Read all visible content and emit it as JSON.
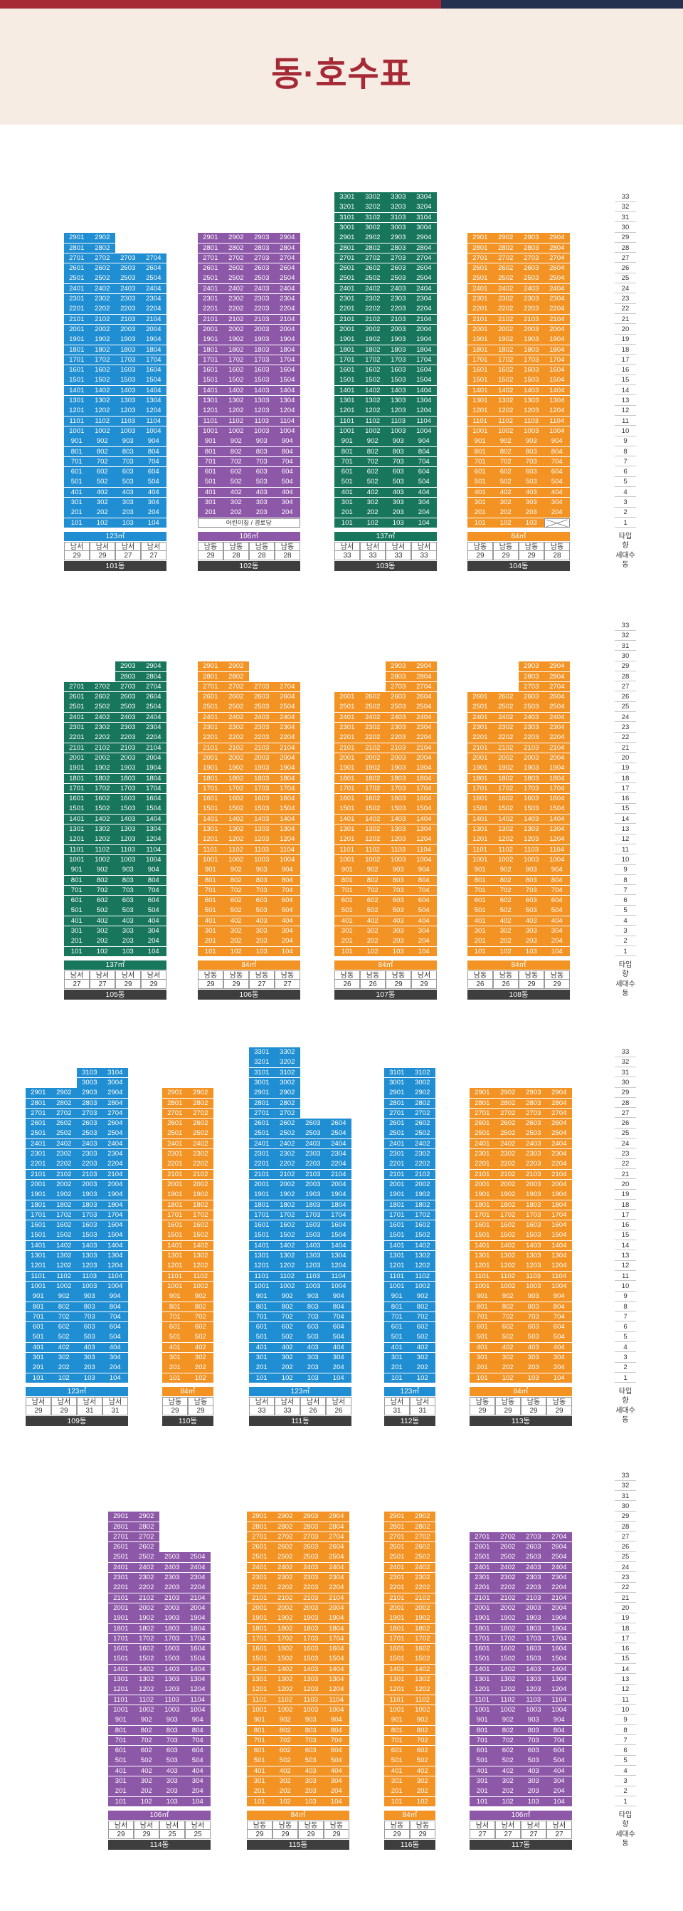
{
  "page": {
    "title": "동·호수표"
  },
  "colors": {
    "page_bg": "#f6ece3",
    "title": "#a52a36",
    "top_bar_left": "#a52a36",
    "top_bar_right": "#25324f",
    "type_123": "#1f8ed2",
    "type_106": "#8e58a8",
    "type_137": "#17765c",
    "type_84": "#f29324",
    "name_bar": "#3e3e3e"
  },
  "legend": {
    "floors": [
      "33",
      "32",
      "31",
      "30",
      "29",
      "28",
      "27",
      "26",
      "25",
      "24",
      "23",
      "22",
      "21",
      "20",
      "19",
      "18",
      "17",
      "16",
      "15",
      "14",
      "13",
      "12",
      "11",
      "10",
      "9",
      "8",
      "7",
      "6",
      "5",
      "4",
      "3",
      "2",
      "1"
    ],
    "labels": [
      "타입",
      "향",
      "세대수",
      "동"
    ]
  },
  "rows": [
    {
      "buildings": [
        {
          "name": "101동",
          "type_label": "123㎡",
          "color": "type_123",
          "cols": [
            {
              "line": 1,
              "dir": "남서",
              "count": "29",
              "max": 29
            },
            {
              "line": 2,
              "dir": "남서",
              "count": "29",
              "max": 29
            },
            {
              "line": 3,
              "dir": "남서",
              "count": "27",
              "max": 27
            },
            {
              "line": 4,
              "dir": "남서",
              "count": "27",
              "max": 27
            }
          ]
        },
        {
          "name": "102동",
          "type_label": "106㎡",
          "color": "type_106",
          "daycare": "어린이집 / 경로당",
          "daycare_floor": 1,
          "cols": [
            {
              "line": 1,
              "dir": "남동",
              "count": "29",
              "max": 29
            },
            {
              "line": 2,
              "dir": "남동",
              "count": "28",
              "max": 29
            },
            {
              "line": 3,
              "dir": "남동",
              "count": "28",
              "max": 29
            },
            {
              "line": 4,
              "dir": "남동",
              "count": "28",
              "max": 29
            }
          ]
        },
        {
          "name": "103동",
          "type_label": "137㎡",
          "color": "type_137",
          "cols": [
            {
              "line": 1,
              "dir": "남서",
              "count": "33",
              "max": 33
            },
            {
              "line": 2,
              "dir": "남서",
              "count": "33",
              "max": 33
            },
            {
              "line": 3,
              "dir": "남서",
              "count": "33",
              "max": 33
            },
            {
              "line": 4,
              "dir": "남서",
              "count": "33",
              "max": 33
            }
          ]
        },
        {
          "name": "104동",
          "type_label": "84㎡",
          "color": "type_84",
          "empty_cell": {
            "line": 4,
            "floor": 1
          },
          "cols": [
            {
              "line": 1,
              "dir": "남동",
              "count": "29",
              "max": 29
            },
            {
              "line": 2,
              "dir": "남동",
              "count": "29",
              "max": 29
            },
            {
              "line": 3,
              "dir": "남동",
              "count": "29",
              "max": 29
            },
            {
              "line": 4,
              "dir": "남동",
              "count": "28",
              "max": 29
            }
          ]
        }
      ]
    },
    {
      "buildings": [
        {
          "name": "105동",
          "type_label": "137㎡",
          "color": "type_137",
          "cols": [
            {
              "line": 1,
              "dir": "남서",
              "count": "27",
              "max": 27
            },
            {
              "line": 2,
              "dir": "남서",
              "count": "27",
              "max": 27
            },
            {
              "line": 3,
              "dir": "남서",
              "count": "29",
              "max": 29
            },
            {
              "line": 4,
              "dir": "남서",
              "count": "29",
              "max": 29
            }
          ]
        },
        {
          "name": "106동",
          "type_label": "84㎡",
          "color": "type_84",
          "cols": [
            {
              "line": 1,
              "dir": "남동",
              "count": "29",
              "max": 29
            },
            {
              "line": 2,
              "dir": "남동",
              "count": "29",
              "max": 29
            },
            {
              "line": 3,
              "dir": "남동",
              "count": "27",
              "max": 27
            },
            {
              "line": 4,
              "dir": "남동",
              "count": "27",
              "max": 27
            }
          ]
        },
        {
          "name": "107동",
          "type_label": "84㎡",
          "color": "type_84",
          "cols": [
            {
              "line": 1,
              "dir": "남동",
              "count": "26",
              "max": 26
            },
            {
              "line": 2,
              "dir": "남동",
              "count": "26",
              "max": 26
            },
            {
              "line": 3,
              "dir": "남동",
              "count": "29",
              "max": 29
            },
            {
              "line": 4,
              "dir": "남서",
              "count": "29",
              "max": 29
            }
          ]
        },
        {
          "name": "108동",
          "type_label": "84㎡",
          "color": "type_84",
          "cols": [
            {
              "line": 1,
              "dir": "남동",
              "count": "26",
              "max": 26
            },
            {
              "line": 2,
              "dir": "남동",
              "count": "26",
              "max": 26
            },
            {
              "line": 3,
              "dir": "남동",
              "count": "29",
              "max": 29
            },
            {
              "line": 4,
              "dir": "남동",
              "count": "29",
              "max": 29
            }
          ]
        }
      ]
    },
    {
      "buildings": [
        {
          "name": "109동",
          "type_label": "123㎡",
          "color": "type_123",
          "cols": [
            {
              "line": 1,
              "dir": "남서",
              "count": "29",
              "max": 29
            },
            {
              "line": 2,
              "dir": "남서",
              "count": "29",
              "max": 29
            },
            {
              "line": 3,
              "dir": "남서",
              "count": "31",
              "max": 31
            },
            {
              "line": 4,
              "dir": "남서",
              "count": "31",
              "max": 31
            }
          ]
        },
        {
          "name": "110동",
          "type_label": "84㎡",
          "color": "type_84",
          "cols": [
            {
              "line": 1,
              "dir": "남동",
              "count": "29",
              "max": 29
            },
            {
              "line": 2,
              "dir": "남동",
              "count": "29",
              "max": 29
            }
          ]
        },
        {
          "name": "111동",
          "type_label": "123㎡",
          "color": "type_123",
          "cols": [
            {
              "line": 1,
              "dir": "남서",
              "count": "33",
              "max": 33
            },
            {
              "line": 2,
              "dir": "남서",
              "count": "33",
              "max": 33
            },
            {
              "line": 3,
              "dir": "남서",
              "count": "26",
              "max": 26
            },
            {
              "line": 4,
              "dir": "남서",
              "count": "26",
              "max": 26
            }
          ]
        },
        {
          "name": "112동",
          "type_label": "123㎡",
          "color": "type_123",
          "cols": [
            {
              "line": 1,
              "dir": "남서",
              "count": "31",
              "max": 31
            },
            {
              "line": 2,
              "dir": "남서",
              "count": "31",
              "max": 31
            }
          ]
        },
        {
          "name": "113동",
          "type_label": "84㎡",
          "color": "type_84",
          "cols": [
            {
              "line": 1,
              "dir": "남동",
              "count": "29",
              "max": 29
            },
            {
              "line": 2,
              "dir": "남동",
              "count": "29",
              "max": 29
            },
            {
              "line": 3,
              "dir": "남동",
              "count": "29",
              "max": 29
            },
            {
              "line": 4,
              "dir": "남동",
              "count": "29",
              "max": 29
            }
          ]
        }
      ]
    },
    {
      "buildings": [
        {
          "name": "114동",
          "type_label": "106㎡",
          "color": "type_106",
          "cols": [
            {
              "line": 1,
              "dir": "남서",
              "count": "29",
              "max": 29
            },
            {
              "line": 2,
              "dir": "남서",
              "count": "29",
              "max": 29
            },
            {
              "line": 3,
              "dir": "남서",
              "count": "25",
              "max": 25
            },
            {
              "line": 4,
              "dir": "남서",
              "count": "25",
              "max": 25
            }
          ]
        },
        {
          "name": "115동",
          "type_label": "84㎡",
          "color": "type_84",
          "cols": [
            {
              "line": 1,
              "dir": "남동",
              "count": "29",
              "max": 29
            },
            {
              "line": 2,
              "dir": "남동",
              "count": "29",
              "max": 29
            },
            {
              "line": 3,
              "dir": "남동",
              "count": "29",
              "max": 29
            },
            {
              "line": 4,
              "dir": "남동",
              "count": "29",
              "max": 29
            }
          ]
        },
        {
          "name": "116동",
          "type_label": "84㎡",
          "color": "type_84",
          "cols": [
            {
              "line": 1,
              "dir": "남동",
              "count": "29",
              "max": 29
            },
            {
              "line": 2,
              "dir": "남동",
              "count": "29",
              "max": 29
            }
          ]
        },
        {
          "name": "117동",
          "type_label": "106㎡",
          "color": "type_106",
          "cols": [
            {
              "line": 1,
              "dir": "남서",
              "count": "27",
              "max": 27
            },
            {
              "line": 2,
              "dir": "남서",
              "count": "27",
              "max": 27
            },
            {
              "line": 3,
              "dir": "남서",
              "count": "27",
              "max": 27
            },
            {
              "line": 4,
              "dir": "남서",
              "count": "27",
              "max": 27
            }
          ]
        }
      ]
    }
  ]
}
